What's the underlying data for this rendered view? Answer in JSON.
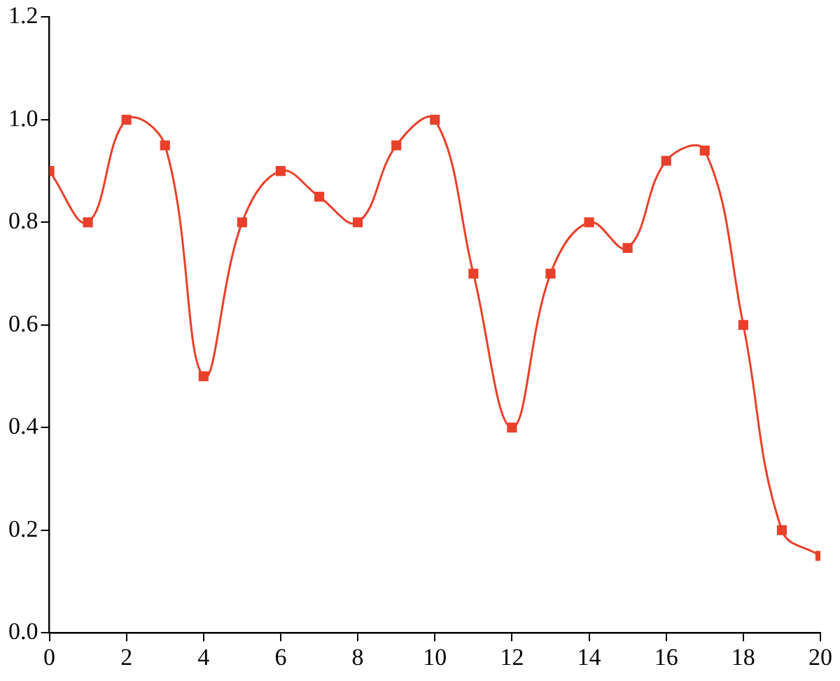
{
  "chart_data": {
    "type": "line",
    "x": [
      0,
      1,
      2,
      3,
      4,
      5,
      6,
      7,
      8,
      9,
      10,
      11,
      12,
      13,
      14,
      15,
      16,
      17,
      18,
      19,
      20
    ],
    "series": [
      {
        "color": "#e8402a",
        "values": [
          0.9,
          0.8,
          1.0,
          0.95,
          0.5,
          0.8,
          0.9,
          0.85,
          0.8,
          0.95,
          1.0,
          0.7,
          0.4,
          0.7,
          0.8,
          0.75,
          0.92,
          0.94,
          0.6,
          0.2,
          0.15
        ]
      }
    ],
    "xlim": [
      0,
      20
    ],
    "xticks": [
      0,
      2,
      4,
      6,
      8,
      10,
      12,
      14,
      16,
      18,
      20
    ],
    "ylim": [
      0,
      1.2
    ],
    "yticks": [
      {
        "value": 0,
        "label": "0.0"
      },
      {
        "value": 0.2,
        "label": "0.2"
      },
      {
        "value": 0.4,
        "label": "0.4"
      },
      {
        "value": 0.6,
        "label": "0.6"
      },
      {
        "value": 0.8,
        "label": "0.8"
      },
      {
        "value": 1.0,
        "label": "1.0"
      },
      {
        "value": 1.2,
        "label": "1.2"
      }
    ],
    "marker": "square"
  }
}
